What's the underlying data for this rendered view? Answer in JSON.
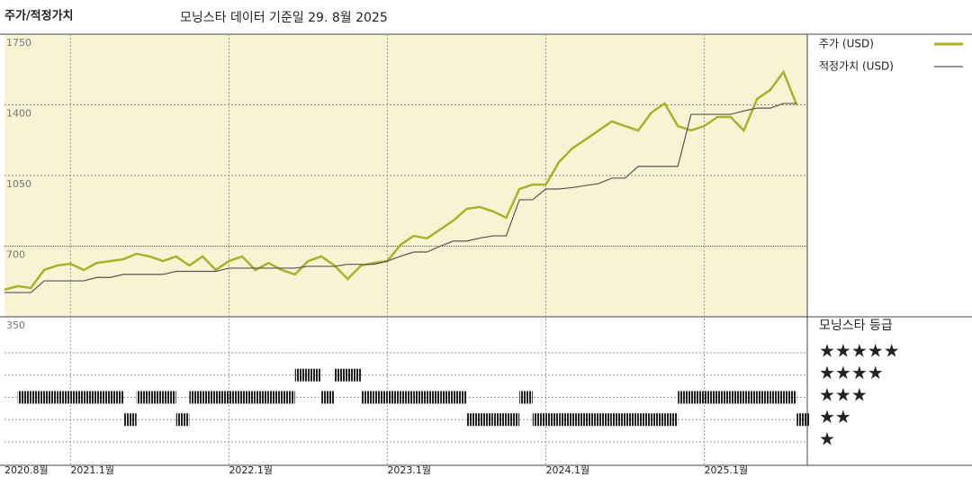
{
  "chart_data": {
    "type": "line",
    "title": "주가/적정가치",
    "subtitle": "모닝스타 데이터 기준일 29. 8월 2025",
    "x": [
      "2020-08",
      "2020-09",
      "2020-10",
      "2020-11",
      "2020-12",
      "2021-01",
      "2021-02",
      "2021-03",
      "2021-04",
      "2021-05",
      "2021-06",
      "2021-07",
      "2021-08",
      "2021-09",
      "2021-10",
      "2021-11",
      "2021-12",
      "2022-01",
      "2022-02",
      "2022-03",
      "2022-04",
      "2022-05",
      "2022-06",
      "2022-07",
      "2022-08",
      "2022-09",
      "2022-10",
      "2022-11",
      "2022-12",
      "2023-01",
      "2023-02",
      "2023-03",
      "2023-04",
      "2023-05",
      "2023-06",
      "2023-07",
      "2023-08",
      "2023-09",
      "2023-10",
      "2023-11",
      "2023-12",
      "2024-01",
      "2024-02",
      "2024-03",
      "2024-04",
      "2024-05",
      "2024-06",
      "2024-07",
      "2024-08",
      "2024-09",
      "2024-10",
      "2024-11",
      "2024-12",
      "2025-01",
      "2025-02",
      "2025-03",
      "2025-04",
      "2025-05",
      "2025-06",
      "2025-07",
      "2025-08"
    ],
    "series": [
      {
        "name": "주가 (USD)",
        "color": "#a8b22a",
        "values": [
          484,
          502,
          493,
          582,
          604,
          613,
          582,
          617,
          626,
          635,
          662,
          649,
          626,
          649,
          604,
          649,
          582,
          626,
          649,
          582,
          617,
          582,
          560,
          626,
          649,
          604,
          537,
          604,
          617,
          626,
          707,
          751,
          738,
          783,
          827,
          885,
          894,
          872,
          841,
          983,
          1005,
          1005,
          1117,
          1184,
          1228,
          1273,
          1318,
          1295,
          1273,
          1362,
          1407,
          1295,
          1273,
          1295,
          1340,
          1340,
          1273,
          1429,
          1474,
          1563,
          1400
        ]
      },
      {
        "name": "적정가치 (USD)",
        "color": "#555555",
        "values": [
          470,
          470,
          470,
          528,
          528,
          528,
          528,
          545,
          545,
          560,
          560,
          560,
          560,
          575,
          575,
          575,
          575,
          591,
          591,
          591,
          591,
          591,
          591,
          600,
          600,
          600,
          610,
          610,
          610,
          626,
          650,
          671,
          671,
          700,
          725,
          725,
          740,
          751,
          751,
          930,
          930,
          983,
          983,
          990,
          1000,
          1010,
          1037,
          1037,
          1095,
          1095,
          1095,
          1095,
          1353,
          1353,
          1353,
          1353,
          1370,
          1384,
          1384,
          1407,
          1407
        ]
      }
    ],
    "ratings": {
      "name": "모닝스타 등급",
      "values": [
        null,
        3,
        3,
        3,
        3,
        3,
        3,
        3,
        3,
        2,
        3,
        3,
        3,
        2,
        3,
        3,
        3,
        3,
        3,
        3,
        3,
        3,
        4,
        4,
        3,
        4,
        4,
        3,
        3,
        3,
        3,
        3,
        3,
        3,
        3,
        2,
        2,
        2,
        2,
        3,
        2,
        2,
        2,
        2,
        2,
        2,
        2,
        2,
        2,
        2,
        2,
        3,
        3,
        3,
        3,
        3,
        3,
        3,
        3,
        3,
        2
      ]
    },
    "rating_levels": [
      {
        "value": 5,
        "label": "★★★★★"
      },
      {
        "value": 4,
        "label": "★★★★"
      },
      {
        "value": 3,
        "label": "★★★"
      },
      {
        "value": 2,
        "label": "★★"
      },
      {
        "value": 1,
        "label": "★"
      }
    ],
    "ylim": [
      350,
      1750
    ],
    "yticks": [
      350,
      700,
      1050,
      1400,
      1750
    ],
    "xticks": [
      {
        "value": "2020-08",
        "label": "2020.8월"
      },
      {
        "value": "2021-01",
        "label": "2021.1월"
      },
      {
        "value": "2022-01",
        "label": "2022.1월"
      },
      {
        "value": "2023-01",
        "label": "2023.1월"
      },
      {
        "value": "2024-01",
        "label": "2024.1월"
      },
      {
        "value": "2025-01",
        "label": "2025.1월"
      }
    ],
    "grid": true
  }
}
